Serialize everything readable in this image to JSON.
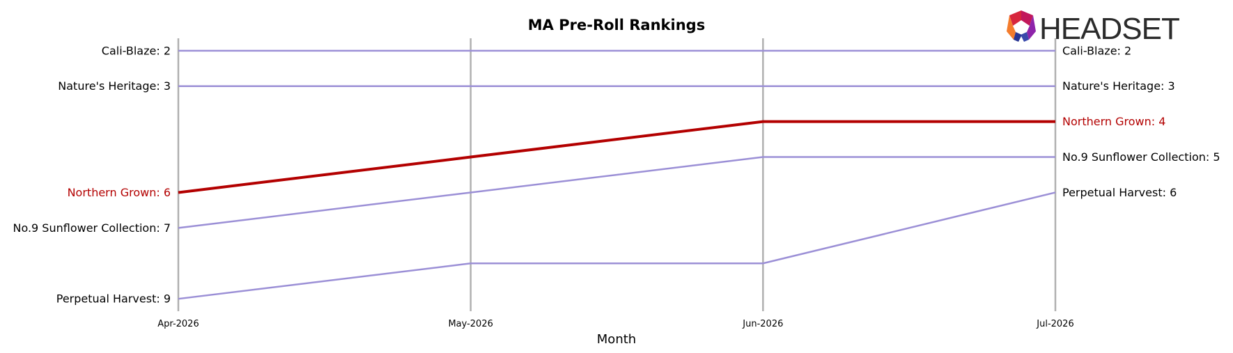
{
  "chart_data": {
    "type": "line",
    "title": "MA Pre-Roll Rankings",
    "xlabel": "Month",
    "ylabel": "",
    "categories": [
      "Apr-2026",
      "May-2026",
      "Jun-2026",
      "Jul-2026"
    ],
    "y_axis": "rank (inverted, 1 at top)",
    "ylim": [
      1.65,
      9.35
    ],
    "grid": "vertical lines at each month",
    "series": [
      {
        "name": "Cali-Blaze",
        "values": [
          2,
          2,
          2,
          2
        ],
        "color": "#9b8fd6",
        "highlight": false
      },
      {
        "name": "Nature's Heritage",
        "values": [
          3,
          3,
          3,
          3
        ],
        "color": "#9b8fd6",
        "highlight": false
      },
      {
        "name": "Northern Grown",
        "values": [
          6,
          5,
          4,
          4
        ],
        "color": "#b30000",
        "highlight": true
      },
      {
        "name": "No.9 Sunflower Collection",
        "values": [
          7,
          6,
          5,
          5
        ],
        "color": "#9b8fd6",
        "highlight": false
      },
      {
        "name": "Perpetual Harvest",
        "values": [
          9,
          8,
          8,
          6
        ],
        "color": "#9b8fd6",
        "highlight": false
      }
    ],
    "left_labels": [
      {
        "text": "Cali-Blaze: 2",
        "rank": 2,
        "highlight": false
      },
      {
        "text": "Nature's Heritage: 3",
        "rank": 3,
        "highlight": false
      },
      {
        "text": "Northern Grown: 6",
        "rank": 6,
        "highlight": true
      },
      {
        "text": "No.9 Sunflower Collection: 7",
        "rank": 7,
        "highlight": false
      },
      {
        "text": "Perpetual Harvest: 9",
        "rank": 9,
        "highlight": false
      }
    ],
    "right_labels": [
      {
        "text": "Cali-Blaze: 2",
        "rank": 2,
        "highlight": false
      },
      {
        "text": "Nature's Heritage: 3",
        "rank": 3,
        "highlight": false
      },
      {
        "text": "Northern Grown: 4",
        "rank": 4,
        "highlight": true
      },
      {
        "text": "No.9 Sunflower Collection: 5",
        "rank": 5,
        "highlight": false
      },
      {
        "text": "Perpetual Harvest: 6",
        "rank": 6,
        "highlight": false
      }
    ]
  },
  "logo": {
    "text": "HEADSET"
  },
  "colors": {
    "highlight": "#b30000",
    "series": "#9b8fd6",
    "grid": "#b0b0b0"
  }
}
